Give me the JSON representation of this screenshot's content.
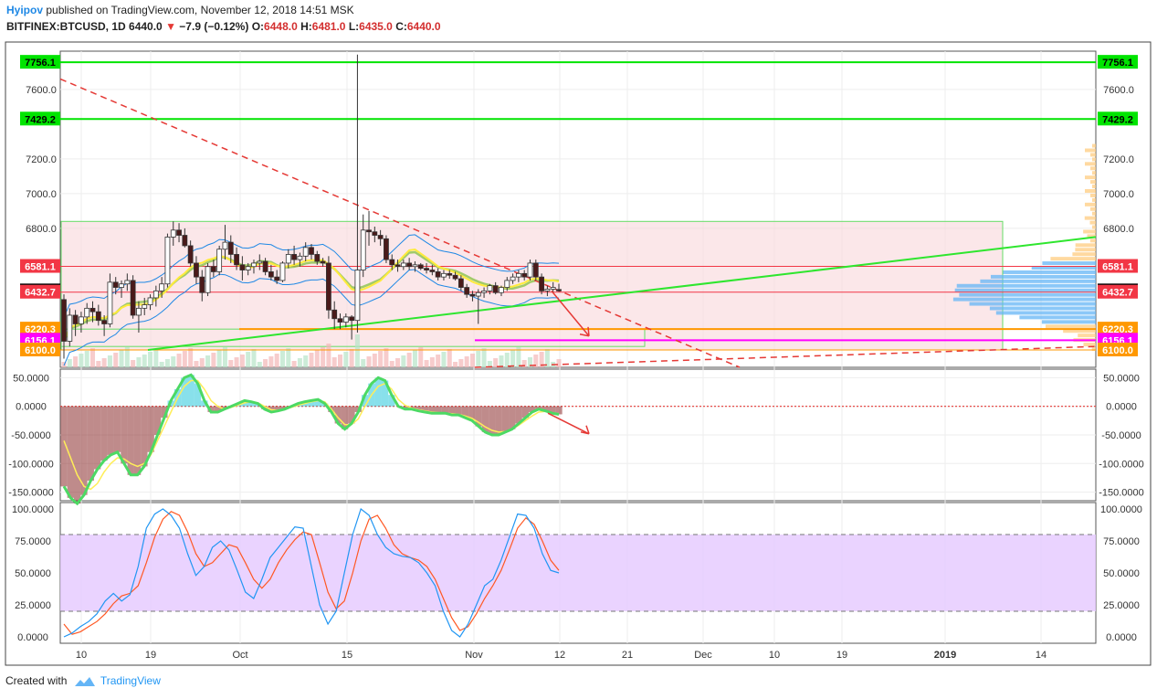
{
  "header": {
    "author": "Hyipov",
    "published_text": "published on TradingView.com, November 12, 2018 14:51 MSK",
    "symbol": "BITFINEX:BTCUSD, 1D",
    "last": "6440.0",
    "change": "−7.9 (−0.12%)",
    "o_label": "O:",
    "o_value": "6448.0",
    "h_label": "H:",
    "h_value": "6481.0",
    "l_label": "L:",
    "l_value": "6435.0",
    "c_label": "C:",
    "c_value": "6440.0"
  },
  "footer": {
    "created_with": "Created with",
    "brand": "TradingView"
  },
  "colors": {
    "up_candle": "#ffffff",
    "down_candle": "#4a1a1a",
    "green_level": "#00e400",
    "red_level": "#f23645",
    "orange_level": "#ff9800",
    "magenta_level": "#ff00ff",
    "price_box": "#000000",
    "stoch_band": "#e5c8ff"
  },
  "chart_data": [
    {
      "type": "candlestick",
      "symbol": "BITFINEX:BTCUSD",
      "interval": "1D",
      "ylim": [
        6000,
        7820
      ],
      "y_ticks": [
        "7600.0",
        "7200.0",
        "7000.0",
        "6800.0"
      ],
      "x_ticks": [
        "10",
        "19",
        "Oct",
        "15",
        "Nov",
        "12",
        "21",
        "Dec",
        "10",
        "19",
        "2019",
        "14"
      ],
      "level_labels": [
        {
          "value": 7756.1,
          "text": "7756.1",
          "color": "#00e400",
          "text_color": "#000000"
        },
        {
          "value": 7429.2,
          "text": "7429.2",
          "color": "#00e400",
          "text_color": "#000000"
        },
        {
          "value": 6581.1,
          "text": "6581.1",
          "color": "#f23645",
          "text_color": "#ffffff"
        },
        {
          "value": 6440.0,
          "text": "6440.0",
          "color": "#000000",
          "text_color": "#ffffff"
        },
        {
          "value": 6432.7,
          "text": "6432.7",
          "color": "#f23645",
          "text_color": "#ffffff"
        },
        {
          "value": 6220.3,
          "text": "6220.3",
          "color": "#ff9800",
          "text_color": "#ffffff"
        },
        {
          "value": 6156.1,
          "text": "6156.1",
          "color": "#ff00ff",
          "text_color": "#ffffff"
        },
        {
          "value": 6100.0,
          "text": "6100.0",
          "color": "#ff9800",
          "text_color": "#ffffff"
        }
      ],
      "candles": [
        [
          6390,
          6420,
          6050,
          6150
        ],
        [
          6150,
          6340,
          6120,
          6300
        ],
        [
          6300,
          6330,
          6180,
          6250
        ],
        [
          6250,
          6320,
          6200,
          6290
        ],
        [
          6290,
          6370,
          6250,
          6340
        ],
        [
          6340,
          6380,
          6260,
          6320
        ],
        [
          6320,
          6360,
          6240,
          6270
        ],
        [
          6270,
          6300,
          6180,
          6250
        ],
        [
          6250,
          6540,
          6230,
          6490
        ],
        [
          6490,
          6520,
          6420,
          6460
        ],
        [
          6460,
          6500,
          6400,
          6480
        ],
        [
          6480,
          6540,
          6440,
          6500
        ],
        [
          6500,
          6530,
          6280,
          6300
        ],
        [
          6300,
          6380,
          6200,
          6340
        ],
        [
          6340,
          6400,
          6300,
          6360
        ],
        [
          6360,
          6420,
          6330,
          6400
        ],
        [
          6400,
          6470,
          6350,
          6440
        ],
        [
          6440,
          6520,
          6400,
          6480
        ],
        [
          6480,
          6770,
          6460,
          6750
        ],
        [
          6750,
          6840,
          6700,
          6790
        ],
        [
          6790,
          6830,
          6720,
          6760
        ],
        [
          6760,
          6800,
          6690,
          6700
        ],
        [
          6700,
          6730,
          6580,
          6600
        ],
        [
          6600,
          6640,
          6480,
          6520
        ],
        [
          6520,
          6560,
          6380,
          6430
        ],
        [
          6430,
          6600,
          6410,
          6580
        ],
        [
          6580,
          6620,
          6520,
          6550
        ],
        [
          6550,
          6700,
          6530,
          6680
        ],
        [
          6680,
          6820,
          6620,
          6720
        ],
        [
          6720,
          6760,
          6600,
          6650
        ],
        [
          6650,
          6690,
          6560,
          6590
        ],
        [
          6590,
          6640,
          6500,
          6560
        ],
        [
          6560,
          6600,
          6530,
          6580
        ],
        [
          6580,
          6620,
          6540,
          6600
        ],
        [
          6600,
          6650,
          6560,
          6610
        ],
        [
          6610,
          6630,
          6530,
          6550
        ],
        [
          6550,
          6590,
          6500,
          6520
        ],
        [
          6520,
          6560,
          6480,
          6500
        ],
        [
          6500,
          6610,
          6490,
          6600
        ],
        [
          6600,
          6680,
          6570,
          6650
        ],
        [
          6650,
          6700,
          6590,
          6620
        ],
        [
          6620,
          6660,
          6580,
          6640
        ],
        [
          6640,
          6720,
          6610,
          6690
        ],
        [
          6690,
          6710,
          6620,
          6650
        ],
        [
          6650,
          6670,
          6590,
          6610
        ],
        [
          6610,
          6630,
          6580,
          6600
        ],
        [
          6600,
          6640,
          6280,
          6330
        ],
        [
          6330,
          6380,
          6220,
          6280
        ],
        [
          6280,
          6310,
          6220,
          6260
        ],
        [
          6260,
          6310,
          6230,
          6290
        ],
        [
          6290,
          6300,
          6160,
          6270
        ],
        [
          6270,
          7800,
          6200,
          6560
        ],
        [
          6560,
          6880,
          6520,
          6790
        ],
        [
          6790,
          6900,
          6700,
          6780
        ],
        [
          6780,
          6810,
          6720,
          6760
        ],
        [
          6760,
          6790,
          6700,
          6740
        ],
        [
          6740,
          6760,
          6600,
          6620
        ],
        [
          6620,
          6650,
          6560,
          6590
        ],
        [
          6590,
          6620,
          6550,
          6580
        ],
        [
          6580,
          6620,
          6560,
          6600
        ],
        [
          6600,
          6630,
          6560,
          6580
        ],
        [
          6580,
          6610,
          6550,
          6590
        ],
        [
          6590,
          6600,
          6560,
          6570
        ],
        [
          6570,
          6600,
          6540,
          6560
        ],
        [
          6560,
          6590,
          6530,
          6550
        ],
        [
          6550,
          6570,
          6500,
          6520
        ],
        [
          6520,
          6560,
          6500,
          6540
        ],
        [
          6540,
          6560,
          6510,
          6530
        ],
        [
          6530,
          6550,
          6500,
          6510
        ],
        [
          6510,
          6530,
          6440,
          6460
        ],
        [
          6460,
          6480,
          6400,
          6420
        ],
        [
          6420,
          6440,
          6380,
          6410
        ],
        [
          6410,
          6450,
          6250,
          6430
        ],
        [
          6430,
          6460,
          6400,
          6440
        ],
        [
          6440,
          6480,
          6420,
          6470
        ],
        [
          6470,
          6490,
          6420,
          6430
        ],
        [
          6430,
          6470,
          6410,
          6460
        ],
        [
          6460,
          6520,
          6440,
          6500
        ],
        [
          6500,
          6540,
          6480,
          6520
        ],
        [
          6520,
          6560,
          6490,
          6540
        ],
        [
          6540,
          6560,
          6500,
          6520
        ],
        [
          6520,
          6620,
          6500,
          6600
        ],
        [
          6600,
          6620,
          6500,
          6520
        ],
        [
          6520,
          6540,
          6420,
          6440
        ],
        [
          6440,
          6470,
          6410,
          6450
        ],
        [
          6450,
          6490,
          6430,
          6460
        ],
        [
          6448,
          6481,
          6435,
          6440
        ]
      ]
    },
    {
      "type": "line",
      "indicator": "oscillator",
      "ylim": [
        -165,
        65
      ],
      "y_ticks": [
        "50.0000",
        "0.0000",
        "-50.0000",
        "-100.0000",
        "-150.0000"
      ],
      "series": [
        {
          "values": [
            -140,
            -160,
            -170,
            -155,
            -130,
            -110,
            -95,
            -85,
            -80,
            -100,
            -120,
            -120,
            -105,
            -80,
            -50,
            -20,
            10,
            30,
            50,
            55,
            40,
            10,
            -10,
            -10,
            -5,
            0,
            5,
            10,
            8,
            5,
            -5,
            -10,
            -8,
            -5,
            0,
            5,
            8,
            10,
            12,
            5,
            -10,
            -30,
            -40,
            -30,
            -10,
            20,
            40,
            50,
            45,
            20,
            0,
            -5,
            -5,
            -8,
            -10,
            -12,
            -12,
            -12,
            -15,
            -15,
            -20,
            -25,
            -35,
            -45,
            -50,
            -50,
            -45,
            -40,
            -30,
            -20,
            -10,
            -5,
            -8,
            -12,
            -14
          ]
        },
        {
          "values": [
            -60,
            -90,
            -120,
            -140,
            -145,
            -135,
            -115,
            -100,
            -90,
            -92,
            -100,
            -105,
            -100,
            -85,
            -60,
            -35,
            -10,
            15,
            35,
            45,
            45,
            30,
            10,
            0,
            -5,
            -2,
            2,
            6,
            8,
            6,
            0,
            -6,
            -7,
            -5,
            -2,
            2,
            5,
            8,
            10,
            8,
            -5,
            -20,
            -32,
            -32,
            -22,
            0,
            20,
            35,
            40,
            30,
            12,
            2,
            -3,
            -6,
            -8,
            -10,
            -11,
            -12,
            -13,
            -14,
            -17,
            -21,
            -28,
            -36,
            -42,
            -45,
            -44,
            -40,
            -33,
            -25,
            -17,
            -10,
            -9,
            -11,
            -13
          ]
        }
      ]
    },
    {
      "type": "line",
      "indicator": "stochastic",
      "ylim": [
        -5,
        105
      ],
      "band": [
        20,
        80
      ],
      "y_ticks": [
        "100.0000",
        "75.0000",
        "50.0000",
        "25.0000",
        "0.0000"
      ],
      "series": [
        {
          "values": [
            0,
            3,
            8,
            12,
            18,
            28,
            34,
            28,
            33,
            55,
            85,
            96,
            100,
            95,
            85,
            65,
            48,
            55,
            70,
            75,
            68,
            52,
            35,
            30,
            45,
            62,
            70,
            78,
            86,
            85,
            55,
            25,
            10,
            20,
            50,
            80,
            100,
            95,
            80,
            70,
            65,
            63,
            62,
            58,
            50,
            40,
            20,
            5,
            0,
            10,
            25,
            40,
            45,
            60,
            78,
            96,
            95,
            85,
            65,
            52,
            50
          ]
        },
        {
          "values": [
            10,
            2,
            4,
            8,
            12,
            18,
            26,
            32,
            34,
            40,
            58,
            78,
            92,
            98,
            95,
            82,
            65,
            55,
            58,
            65,
            72,
            70,
            58,
            45,
            38,
            45,
            58,
            68,
            76,
            82,
            80,
            58,
            35,
            22,
            28,
            50,
            75,
            92,
            95,
            85,
            72,
            65,
            62,
            60,
            55,
            45,
            30,
            15,
            5,
            8,
            18,
            30,
            40,
            52,
            68,
            85,
            93,
            88,
            75,
            60,
            52
          ]
        }
      ]
    }
  ]
}
